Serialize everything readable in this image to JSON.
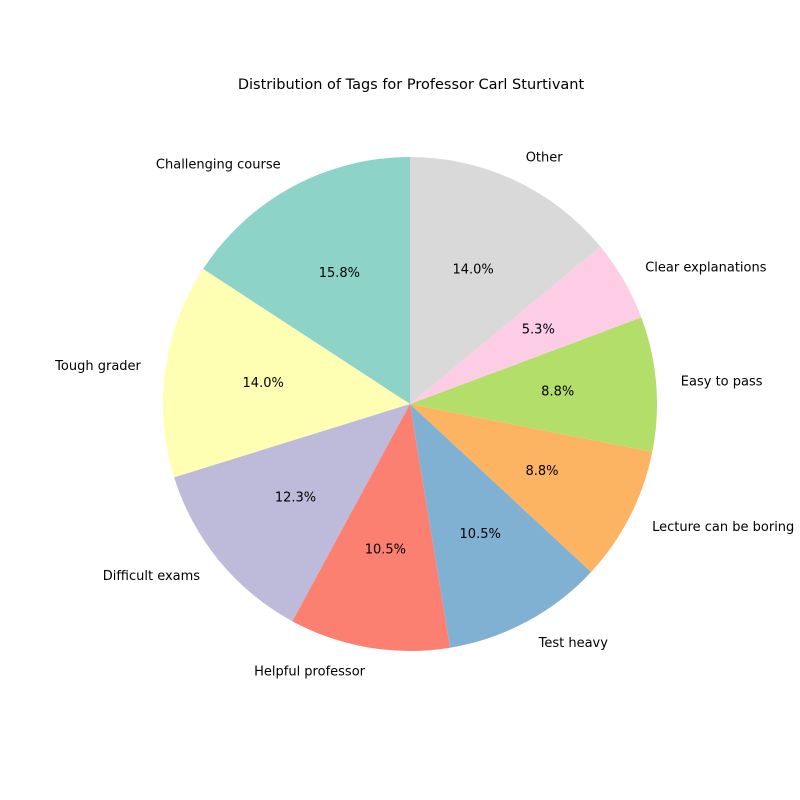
{
  "chart_data": {
    "type": "pie",
    "title": "Distribution of Tags for Professor Carl Sturtivant",
    "categories": [
      "Challenging course",
      "Tough grader",
      "Difficult exams",
      "Helpful professor",
      "Test heavy",
      "Lecture can be boring",
      "Easy to pass",
      "Clear explanations",
      "Other"
    ],
    "values": [
      15.8,
      14.0,
      12.3,
      10.5,
      10.5,
      8.8,
      8.8,
      5.3,
      14.0
    ],
    "percent_labels": [
      "15.8%",
      "14.0%",
      "12.3%",
      "10.5%",
      "10.5%",
      "8.8%",
      "8.8%",
      "5.3%",
      "14.0%"
    ],
    "colors": [
      "#8dd3c7",
      "#ffffb3",
      "#bebada",
      "#fb8072",
      "#80b1d3",
      "#fdb462",
      "#b3de69",
      "#fccde5",
      "#d9d9d9"
    ],
    "start_angle_deg": 90,
    "direction": "counterclockwise",
    "legend": "none"
  }
}
